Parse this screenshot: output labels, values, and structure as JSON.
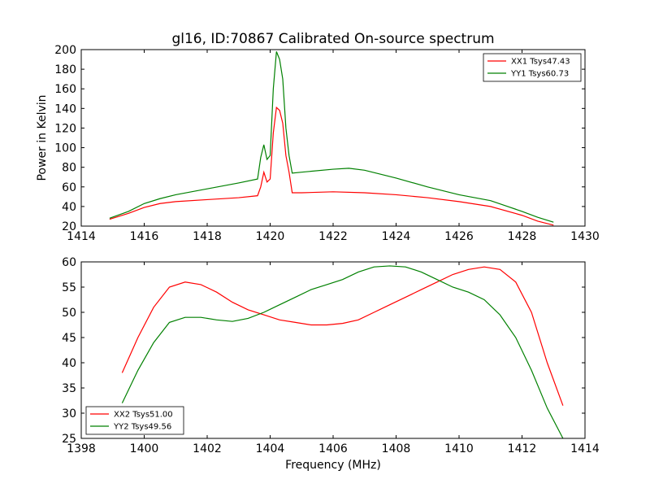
{
  "figure": {
    "title": "gl16, ID:70867 Calibrated On-source spectrum",
    "xlabel": "Frequency (MHz)"
  },
  "chart_data": [
    {
      "type": "line",
      "title": "gl16, ID:70867 Calibrated On-source spectrum",
      "xlabel": "",
      "ylabel": "Power in Kelvin",
      "xlim": [
        1414,
        1430
      ],
      "ylim": [
        20,
        200
      ],
      "xticks": [
        1414,
        1416,
        1418,
        1420,
        1422,
        1424,
        1426,
        1428,
        1430
      ],
      "yticks": [
        20,
        40,
        60,
        80,
        100,
        120,
        140,
        160,
        180,
        200
      ],
      "grid": false,
      "legend_position": "top-right",
      "series": [
        {
          "name": "XX1 Tsys47.43",
          "color": "#ff0000",
          "x": [
            1414.9,
            1415.5,
            1416.0,
            1416.5,
            1417.0,
            1418.0,
            1419.0,
            1419.6,
            1419.7,
            1419.8,
            1419.9,
            1420.0,
            1420.1,
            1420.2,
            1420.3,
            1420.4,
            1420.5,
            1420.6,
            1420.7,
            1421.0,
            1422.0,
            1423.0,
            1424.0,
            1425.0,
            1426.0,
            1427.0,
            1428.0,
            1428.5,
            1429.0
          ],
          "y": [
            27,
            33,
            39,
            43,
            45,
            47,
            49,
            51,
            60,
            75,
            65,
            68,
            115,
            141,
            138,
            125,
            92,
            75,
            54,
            54,
            55,
            54,
            52,
            49,
            45,
            40,
            31,
            25,
            21
          ]
        },
        {
          "name": "YY1 Tsys60.73",
          "color": "#008000",
          "x": [
            1414.9,
            1415.5,
            1416.0,
            1416.5,
            1417.0,
            1418.0,
            1419.0,
            1419.6,
            1419.7,
            1419.8,
            1419.9,
            1420.0,
            1420.1,
            1420.2,
            1420.3,
            1420.4,
            1420.5,
            1420.6,
            1420.7,
            1421.0,
            1422.0,
            1422.5,
            1423.0,
            1424.0,
            1425.0,
            1426.0,
            1427.0,
            1428.0,
            1428.5,
            1429.0
          ],
          "y": [
            28,
            35,
            43,
            48,
            52,
            58,
            64,
            68,
            90,
            103,
            88,
            92,
            160,
            198,
            190,
            170,
            120,
            92,
            74,
            75,
            78,
            79,
            77,
            69,
            60,
            52,
            46,
            35,
            29,
            24
          ]
        }
      ]
    },
    {
      "type": "line",
      "title": "",
      "xlabel": "Frequency (MHz)",
      "ylabel": "",
      "xlim": [
        1398,
        1414
      ],
      "ylim": [
        25,
        60
      ],
      "xticks": [
        1398,
        1400,
        1402,
        1404,
        1406,
        1408,
        1410,
        1412,
        1414
      ],
      "yticks": [
        25,
        30,
        35,
        40,
        45,
        50,
        55,
        60
      ],
      "grid": false,
      "legend_position": "bottom-left",
      "series": [
        {
          "name": "XX2 Tsys51.00",
          "color": "#ff0000",
          "x": [
            1399.3,
            1399.8,
            1400.3,
            1400.8,
            1401.3,
            1401.8,
            1402.3,
            1402.8,
            1403.3,
            1403.8,
            1404.3,
            1404.8,
            1405.3,
            1405.8,
            1406.3,
            1406.8,
            1407.3,
            1407.8,
            1408.3,
            1408.8,
            1409.3,
            1409.8,
            1410.3,
            1410.8,
            1411.3,
            1411.8,
            1412.3,
            1412.8,
            1413.3
          ],
          "y": [
            38,
            45,
            51,
            55,
            56,
            55.5,
            54,
            52,
            50.5,
            49.5,
            48.5,
            48,
            47.5,
            47.5,
            47.8,
            48.5,
            50,
            51.5,
            53,
            54.5,
            56,
            57.5,
            58.5,
            59,
            58.5,
            56,
            50,
            40,
            31.5
          ]
        },
        {
          "name": "YY2 Tsys49.56",
          "color": "#008000",
          "x": [
            1399.3,
            1399.8,
            1400.3,
            1400.8,
            1401.3,
            1401.8,
            1402.3,
            1402.8,
            1403.3,
            1403.8,
            1404.3,
            1404.8,
            1405.3,
            1405.8,
            1406.3,
            1406.8,
            1407.3,
            1407.8,
            1408.3,
            1408.8,
            1409.3,
            1409.8,
            1410.3,
            1410.8,
            1411.3,
            1411.8,
            1412.3,
            1412.8,
            1413.3
          ],
          "y": [
            32,
            38.5,
            44,
            48,
            49,
            49,
            48.5,
            48.2,
            48.8,
            50,
            51.5,
            53,
            54.5,
            55.5,
            56.5,
            58,
            59,
            59.2,
            59,
            58,
            56.5,
            55,
            54,
            52.5,
            49.5,
            45,
            38.5,
            31,
            25
          ]
        }
      ]
    }
  ]
}
